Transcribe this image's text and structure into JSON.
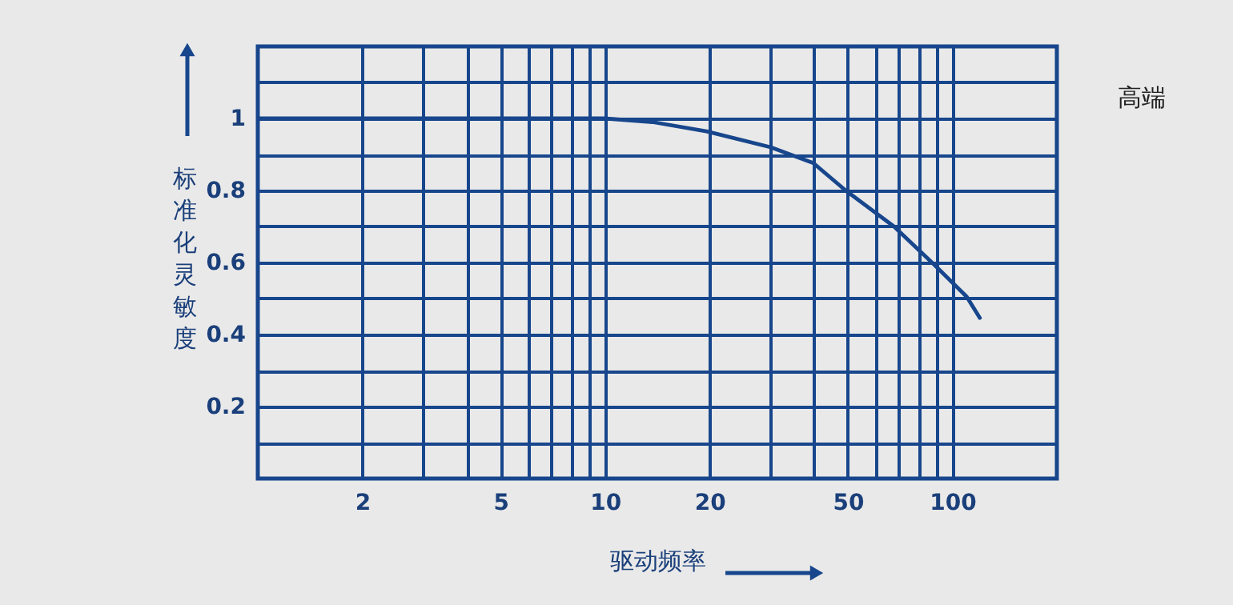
{
  "chart_data": {
    "type": "line",
    "xlabel": "驱动频率",
    "ylabel": "标准化灵敏度",
    "annotations": [
      "高端"
    ],
    "log": "x",
    "grid": true,
    "line_style": "solid",
    "xlim": [
      1,
      200
    ],
    "ylim": [
      0,
      1.2
    ],
    "xticks": [
      2,
      {
        "value": 3,
        "label": null
      },
      {
        "value": 4,
        "label": null
      },
      5,
      {
        "value": 6,
        "label": null
      },
      {
        "value": 7,
        "label": null
      },
      {
        "value": 8,
        "label": null
      },
      {
        "value": 9,
        "label": null
      },
      10,
      20,
      {
        "value": 30,
        "label": null
      },
      {
        "value": 40,
        "label": null
      },
      50,
      {
        "value": 60,
        "label": null
      },
      {
        "value": 70,
        "label": null
      },
      {
        "value": 80,
        "label": null
      },
      {
        "value": 90,
        "label": null
      },
      100
    ],
    "yticks": [
      {
        "value": 0.1,
        "label": null
      },
      0.2,
      {
        "value": 0.3,
        "label": null
      },
      0.4,
      {
        "value": 0.5,
        "label": null
      },
      0.6,
      {
        "value": 0.7,
        "label": null
      },
      0.8,
      {
        "value": 0.9,
        "label": null
      },
      1,
      {
        "value": 1.1,
        "label": null
      }
    ],
    "x": [
      1,
      5,
      10,
      13.7,
      19.6,
      30,
      39.8,
      49.3,
      67.9,
      88.7,
      110,
      120
    ],
    "series": [
      {
        "color": "#17468c",
        "values": [
          1,
          1,
          1,
          0.99,
          0.964,
          0.92,
          0.876,
          0.8,
          0.7,
          0.594,
          0.505,
          0.446
        ]
      }
    ]
  }
}
